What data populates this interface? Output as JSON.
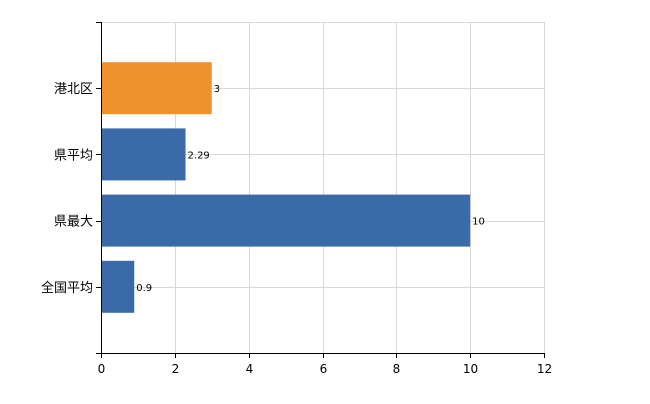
{
  "chart_data": {
    "type": "bar",
    "orientation": "horizontal",
    "categories": [
      "港北区",
      "県平均",
      "県最大",
      "全国平均"
    ],
    "values": [
      3,
      2.29,
      10,
      0.9
    ],
    "data_labels": [
      "3",
      "2.29",
      "10",
      "0.9"
    ],
    "bar_colors": [
      "#f0922b",
      "#3b6aa8",
      "#3b6aa8",
      "#3b6aa8"
    ],
    "xlim": [
      0,
      12
    ],
    "xticks": [
      0,
      2,
      4,
      6,
      8,
      10,
      12
    ],
    "xtick_labels": [
      "0",
      "2",
      "4",
      "6",
      "8",
      "10",
      "12"
    ],
    "grid": true,
    "legend": false,
    "title": "",
    "xlabel": "",
    "ylabel": ""
  }
}
